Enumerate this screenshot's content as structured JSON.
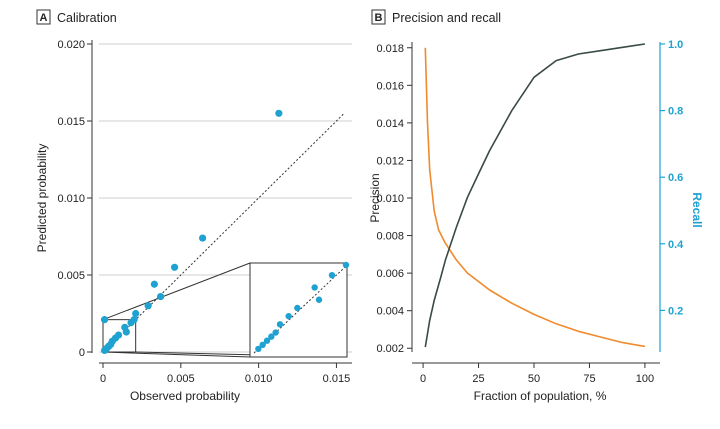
{
  "chart_data": [
    {
      "panel": "A",
      "title": "Calibration",
      "type": "scatter",
      "xlabel": "Observed probability",
      "ylabel": "Predicted probability",
      "xlim": [
        0,
        0.016
      ],
      "ylim": [
        0,
        0.02
      ],
      "xticks": [
        0,
        0.005,
        0.01,
        0.015
      ],
      "xtick_labels": [
        "0",
        "0.005",
        "0.010",
        "0.015"
      ],
      "yticks": [
        0,
        0.005,
        0.01,
        0.015,
        0.02
      ],
      "ytick_labels": [
        "0",
        "0.005",
        "0.010",
        "0.015",
        "0.020"
      ],
      "grid": "horizontal",
      "reference_line": "y = x (dotted)",
      "color": "#1fa2d1",
      "points": [
        {
          "x": 0.0001,
          "y": 0.0001
        },
        {
          "x": 0.0002,
          "y": 0.0002
        },
        {
          "x": 0.0003,
          "y": 0.0003
        },
        {
          "x": 0.0004,
          "y": 0.0004
        },
        {
          "x": 0.0005,
          "y": 0.0005
        },
        {
          "x": 0.0006,
          "y": 0.0007
        },
        {
          "x": 0.0008,
          "y": 0.0009
        },
        {
          "x": 0.001,
          "y": 0.0011
        },
        {
          "x": 0.0014,
          "y": 0.0016
        },
        {
          "x": 0.0015,
          "y": 0.0013
        },
        {
          "x": 0.0018,
          "y": 0.0019
        },
        {
          "x": 0.002,
          "y": 0.0021
        },
        {
          "x": 0.0021,
          "y": 0.0025
        },
        {
          "x": 0.0029,
          "y": 0.003
        },
        {
          "x": 0.0033,
          "y": 0.0044
        },
        {
          "x": 0.0037,
          "y": 0.0036
        },
        {
          "x": 0.0046,
          "y": 0.0055
        },
        {
          "x": 0.0064,
          "y": 0.0074
        },
        {
          "x": 0.0113,
          "y": 0.0155
        },
        {
          "x": 0.0001,
          "y": 0.0021
        }
      ],
      "inset": {
        "zoom_x": [
          0,
          0.0021
        ],
        "zoom_y": [
          0,
          0.0021
        ],
        "tick_label": "0.010"
      }
    },
    {
      "panel": "B",
      "title": "Precision and recall",
      "type": "line",
      "xlabel": "Fraction of population, %",
      "ylabel": "Precision",
      "y2label": "Recall",
      "xlim": [
        -5,
        105
      ],
      "ylim": [
        0.0018,
        0.0182
      ],
      "y2lim": [
        0.075,
        1.0
      ],
      "xticks": [
        0,
        25,
        50,
        75,
        100
      ],
      "xtick_labels": [
        "0",
        "25",
        "50",
        "75",
        "100"
      ],
      "yticks": [
        0.002,
        0.004,
        0.006,
        0.008,
        0.01,
        0.012,
        0.014,
        0.016,
        0.018
      ],
      "ytick_labels": [
        "0.002",
        "0.004",
        "0.006",
        "0.008",
        "0.010",
        "0.012",
        "0.014",
        "0.016",
        "0.018"
      ],
      "y2ticks": [
        0.2,
        0.4,
        0.6,
        0.8,
        1.0
      ],
      "y2tick_labels": [
        "0.2",
        "0.4",
        "0.6",
        "0.8",
        "1.0"
      ],
      "grid": "none",
      "series": [
        {
          "name": "Precision",
          "axis": "left",
          "color": "#f08a2c",
          "x": [
            1,
            2,
            3,
            5,
            7,
            10,
            15,
            20,
            30,
            40,
            50,
            60,
            70,
            80,
            90,
            100
          ],
          "values": [
            0.018,
            0.014,
            0.0115,
            0.0093,
            0.0083,
            0.0076,
            0.0067,
            0.006,
            0.0051,
            0.0044,
            0.0038,
            0.0033,
            0.0029,
            0.0026,
            0.0023,
            0.0021
          ]
        },
        {
          "name": "Recall",
          "axis": "right",
          "color": "#3a4a45",
          "x": [
            1,
            3,
            5,
            8,
            10,
            15,
            20,
            25,
            30,
            40,
            50,
            60,
            70,
            80,
            90,
            100
          ],
          "values": [
            0.09,
            0.17,
            0.23,
            0.3,
            0.35,
            0.45,
            0.54,
            0.61,
            0.68,
            0.8,
            0.9,
            0.95,
            0.97,
            0.98,
            0.99,
            1.0
          ]
        }
      ]
    }
  ]
}
